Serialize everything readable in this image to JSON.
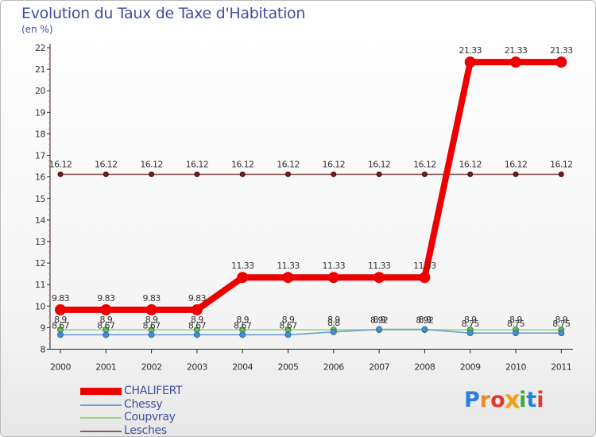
{
  "header": {
    "title": "Evolution du Taux de Taxe d'Habitation",
    "unit": "(en %)"
  },
  "chart_data": {
    "type": "line",
    "categories": [
      "2000",
      "2001",
      "2002",
      "2003",
      "2004",
      "2005",
      "2006",
      "2007",
      "2008",
      "2009",
      "2010",
      "2011"
    ],
    "ylim": [
      8,
      22
    ],
    "yticks": [
      "8",
      "9",
      "10",
      "11",
      "12",
      "13",
      "14",
      "15",
      "16",
      "17",
      "18",
      "19",
      "20",
      "21",
      "22"
    ],
    "title": "Evolution du Taux de Taxe d'Habitation",
    "ylabel": "(en %)",
    "grid": false,
    "series": [
      {
        "name": "CHALIFERT",
        "color": "#ee0000",
        "values": [
          9.83,
          9.83,
          9.83,
          9.83,
          11.33,
          11.33,
          11.33,
          11.33,
          11.33,
          21.33,
          21.33,
          21.33
        ],
        "labels": [
          "9.83",
          "9.83",
          "9.83",
          "9.83",
          "11.33",
          "11.33",
          "11.33",
          "11.33",
          "11.33",
          "21.33",
          "21.33",
          "21.33"
        ]
      },
      {
        "name": "Chessy",
        "color": "#6f9fd0",
        "values": [
          8.67,
          8.67,
          8.67,
          8.67,
          8.67,
          8.67,
          8.8,
          8.92,
          8.92,
          8.75,
          8.75,
          8.75
        ],
        "labels": [
          "8.67",
          "8.67",
          "8.67",
          "8.67",
          "8.67",
          "8.67",
          "8.8",
          "8.92",
          "8.92",
          "8.75",
          "8.75",
          "8.75"
        ]
      },
      {
        "name": "Coupvray",
        "color": "#92d880",
        "values": [
          8.9,
          8.9,
          8.9,
          8.9,
          8.9,
          8.9,
          8.9,
          8.9,
          8.9,
          8.9,
          8.9,
          8.9
        ],
        "labels": [
          "8.9",
          "8.9",
          "8.9",
          "8.9",
          "8.9",
          "8.9",
          "8.9",
          "8.9",
          "8.9",
          "8.9",
          "8.9",
          "8.9"
        ]
      },
      {
        "name": "Lesches",
        "color": "#8a5a5a",
        "values": [
          16.12,
          16.12,
          16.12,
          16.12,
          16.12,
          16.12,
          16.12,
          16.12,
          16.12,
          16.12,
          16.12,
          16.12
        ],
        "labels": [
          "16.12",
          "16.12",
          "16.12",
          "16.12",
          "16.12",
          "16.12",
          "16.12",
          "16.12",
          "16.12",
          "16.12",
          "16.12",
          "16.12"
        ]
      }
    ]
  },
  "legend": {
    "items": [
      {
        "label": "CHALIFERT",
        "color": "#ee0000"
      },
      {
        "label": "Chessy",
        "color": "#6f9fd0"
      },
      {
        "label": "Coupvray",
        "color": "#92d880"
      },
      {
        "label": "Lesches",
        "color": "#8a5a5a"
      }
    ]
  },
  "logo": {
    "letters": [
      "P",
      "r",
      "o",
      "x",
      "i",
      "t",
      "i"
    ],
    "colors": [
      "#2a7fd8",
      "#f08a1a",
      "#e23a2a",
      "#f0a11a",
      "#3aaa3a",
      "#2a7fd8",
      "#e23a2a"
    ]
  }
}
